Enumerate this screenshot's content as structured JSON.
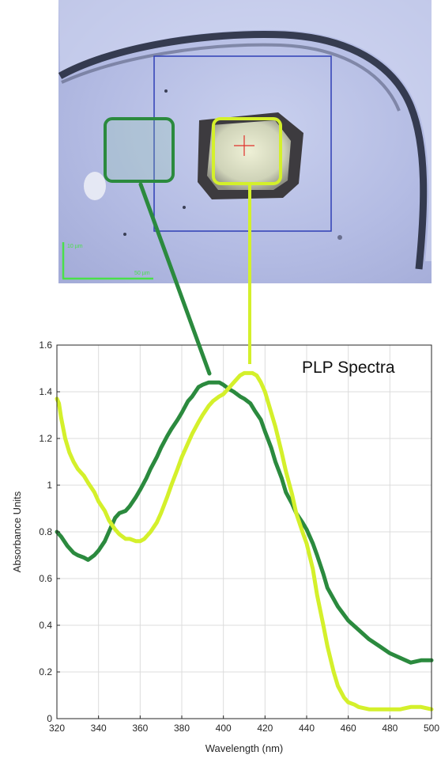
{
  "micrograph": {
    "scale_v_label": "10 µm",
    "scale_h_label": "50 µm"
  },
  "colors": {
    "dark_series": "#2b8a3e",
    "light_series": "#d4f02b",
    "roi_box": "#2f3fb5",
    "crosshair": "#e0302a",
    "scale_bar": "#4ae04a"
  },
  "chart_data": {
    "type": "line",
    "title": "PLP Spectra",
    "xlabel": "Wavelength (nm)",
    "ylabel": "Absorbance Units",
    "xlim": [
      320,
      500
    ],
    "ylim": [
      0,
      1.6
    ],
    "x_ticks": [
      "320",
      "340",
      "360",
      "380",
      "400",
      "420",
      "440",
      "460",
      "480",
      "500"
    ],
    "y_ticks": [
      "0",
      "0.2",
      "0.4",
      "0.6",
      "0.8",
      "1",
      "1.2",
      "1.4",
      "1.6"
    ],
    "grid": true,
    "series": [
      {
        "color": "#2b8a3e",
        "x": [
          320,
          322,
          325,
          328,
          330,
          333,
          335,
          338,
          340,
          343,
          345,
          348,
          350,
          353,
          355,
          358,
          360,
          363,
          365,
          368,
          370,
          373,
          375,
          378,
          380,
          383,
          385,
          388,
          390,
          393,
          395,
          398,
          400,
          403,
          405,
          408,
          410,
          413,
          415,
          418,
          420,
          423,
          425,
          428,
          430,
          433,
          435,
          438,
          440,
          443,
          445,
          448,
          450,
          455,
          460,
          465,
          470,
          475,
          480,
          485,
          490,
          495,
          500
        ],
        "y": [
          0.8,
          0.78,
          0.74,
          0.71,
          0.7,
          0.69,
          0.68,
          0.7,
          0.72,
          0.76,
          0.8,
          0.86,
          0.88,
          0.89,
          0.91,
          0.95,
          0.98,
          1.03,
          1.07,
          1.12,
          1.16,
          1.21,
          1.24,
          1.28,
          1.31,
          1.36,
          1.38,
          1.42,
          1.43,
          1.44,
          1.44,
          1.44,
          1.43,
          1.41,
          1.4,
          1.38,
          1.37,
          1.35,
          1.32,
          1.28,
          1.23,
          1.16,
          1.1,
          1.03,
          0.97,
          0.92,
          0.88,
          0.84,
          0.81,
          0.75,
          0.7,
          0.62,
          0.56,
          0.48,
          0.42,
          0.38,
          0.34,
          0.31,
          0.28,
          0.26,
          0.24,
          0.25,
          0.25
        ]
      },
      {
        "color": "#d4f02b",
        "x": [
          320,
          321,
          322,
          324,
          326,
          328,
          330,
          333,
          335,
          338,
          340,
          343,
          345,
          348,
          350,
          353,
          355,
          358,
          360,
          362,
          365,
          368,
          370,
          373,
          375,
          378,
          380,
          383,
          385,
          388,
          390,
          393,
          395,
          398,
          400,
          403,
          405,
          408,
          410,
          412,
          414,
          416,
          418,
          420,
          422,
          425,
          428,
          430,
          433,
          435,
          438,
          440,
          443,
          445,
          448,
          450,
          453,
          455,
          458,
          460,
          463,
          465,
          470,
          475,
          480,
          485,
          490,
          495,
          500
        ],
        "y": [
          1.37,
          1.35,
          1.29,
          1.2,
          1.14,
          1.1,
          1.07,
          1.04,
          1.01,
          0.97,
          0.93,
          0.89,
          0.85,
          0.81,
          0.79,
          0.77,
          0.77,
          0.76,
          0.76,
          0.77,
          0.8,
          0.84,
          0.88,
          0.95,
          1.0,
          1.07,
          1.12,
          1.18,
          1.22,
          1.27,
          1.3,
          1.34,
          1.36,
          1.38,
          1.39,
          1.42,
          1.44,
          1.47,
          1.48,
          1.48,
          1.48,
          1.47,
          1.44,
          1.4,
          1.34,
          1.25,
          1.14,
          1.06,
          0.96,
          0.88,
          0.8,
          0.75,
          0.64,
          0.53,
          0.4,
          0.31,
          0.2,
          0.14,
          0.09,
          0.07,
          0.06,
          0.05,
          0.04,
          0.04,
          0.04,
          0.04,
          0.05,
          0.05,
          0.04
        ]
      }
    ]
  }
}
